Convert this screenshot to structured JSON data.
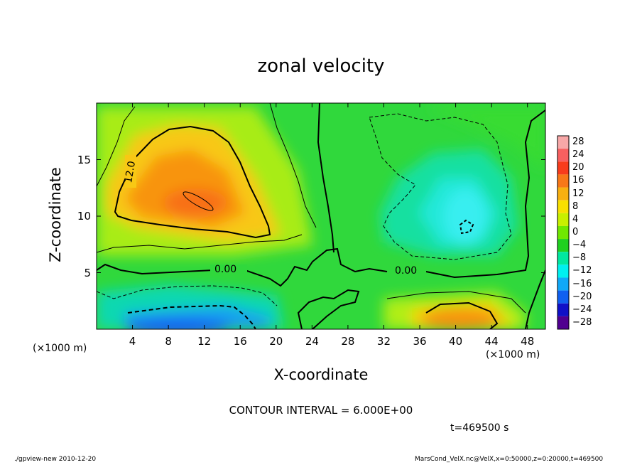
{
  "chart_data": {
    "type": "heatmap",
    "title": "zonal velocity",
    "xlabel": "X-coordinate",
    "ylabel": "Z-coordinate",
    "x_unit": "(×1000 m)",
    "y_unit": "(×1000 m)",
    "xlim": [
      0,
      50
    ],
    "ylim": [
      0,
      20
    ],
    "x_ticks": [
      "4",
      "8",
      "12",
      "16",
      "20",
      "24",
      "28",
      "32",
      "36",
      "40",
      "44",
      "48"
    ],
    "y_ticks": [
      "5",
      "10",
      "15"
    ],
    "colorbar_labels": [
      "28",
      "24",
      "20",
      "16",
      "12",
      "8",
      "4",
      "0",
      "−4",
      "−8",
      "−12",
      "−16",
      "−20",
      "−24",
      "−28"
    ],
    "colorbar_colors": [
      "#f8a8a8",
      "#f86060",
      "#f83c1c",
      "#f87818",
      "#f8b010",
      "#f8e000",
      "#c8f000",
      "#70e800",
      "#20d020",
      "#00e8a0",
      "#00f0f0",
      "#10a8f8",
      "#1060f0",
      "#1010c8",
      "#500090"
    ],
    "contour_interval_text": "CONTOUR INTERVAL = 6.000E+00",
    "contour_labels": [
      "12.0",
      "0.00",
      "0.00"
    ],
    "time_text": "t=469500 s",
    "features": [
      {
        "name": "positive core",
        "x": 10,
        "z": 12,
        "value": 16
      },
      {
        "name": "negative region",
        "x": 40,
        "z": 10,
        "value": -10
      },
      {
        "name": "surface jet",
        "x": 10,
        "z": 1,
        "value": -14
      },
      {
        "name": "surface positive",
        "x": 41,
        "z": 1,
        "value": 14
      }
    ]
  },
  "footer": {
    "left": "./gpview-new  2010-12-20",
    "right": "MarsCond_VelX.nc@VelX,x=0:50000,z=0:20000,t=469500"
  }
}
